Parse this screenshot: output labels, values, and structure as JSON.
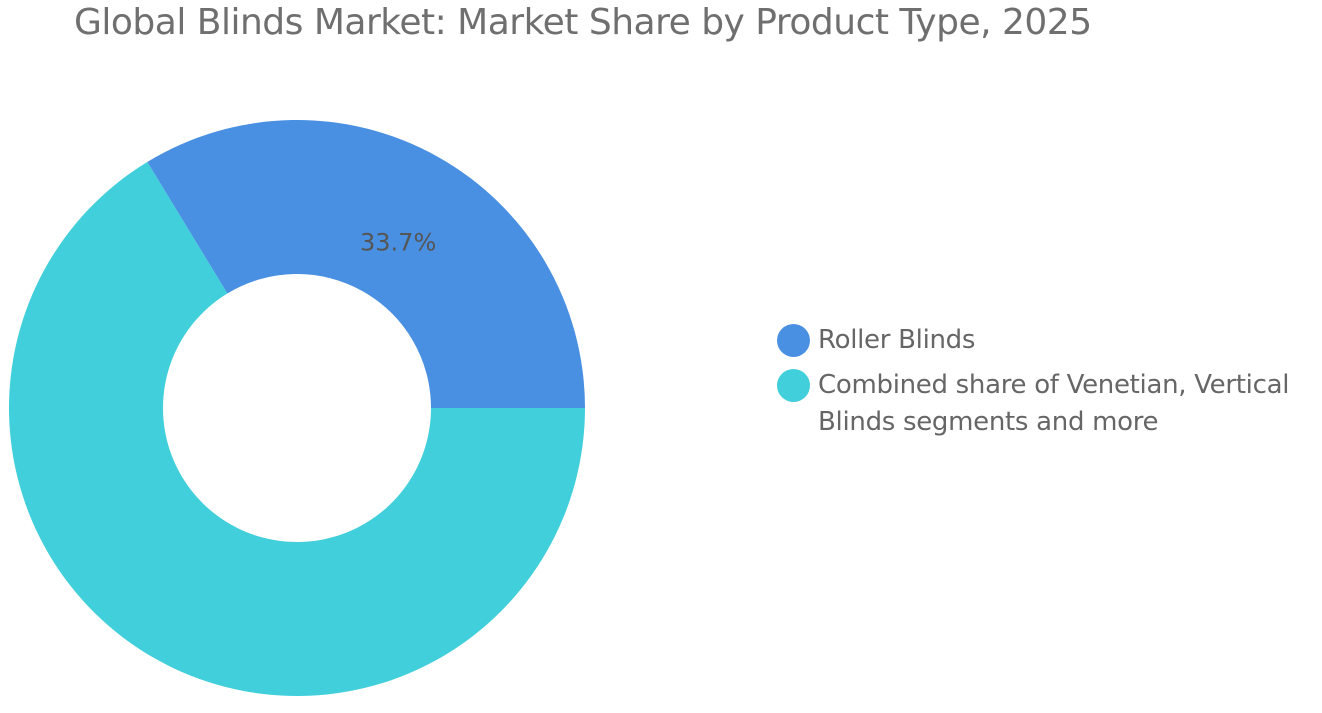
{
  "chart_data": {
    "type": "pie",
    "title": "Global Blinds Market: Market Share by Product Type, 2025",
    "slices": [
      {
        "name": "Roller Blinds",
        "value": 33.7,
        "label": "33.7%",
        "color": "#4a90e2"
      },
      {
        "name": "Combined share of Venetian, Vertical Blinds segments and more",
        "value": 66.3,
        "label": "",
        "color": "#40cfdb"
      }
    ],
    "legend_position": "right"
  }
}
